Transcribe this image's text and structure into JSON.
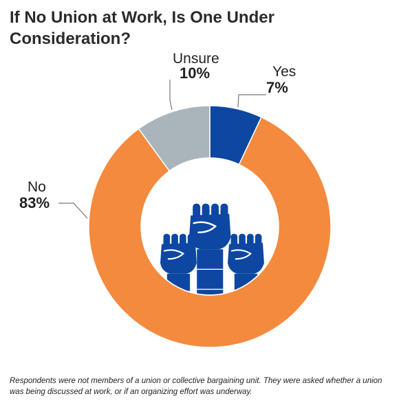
{
  "chart_data": {
    "type": "pie",
    "donut": true,
    "title": "If No Union at Work, Is One Under Consideration?",
    "categories": [
      "Yes",
      "No",
      "Unsure"
    ],
    "values": [
      7,
      83,
      10
    ],
    "value_labels": [
      "7%",
      "83%",
      "10%"
    ],
    "colors": [
      "#0d47a1",
      "#f48a3e",
      "#a9b5bb"
    ],
    "center_icon": "raised-fists-icon",
    "footnote": "Respondents were not members of a union or collective bargaining unit. They were asked whether a union was being discussed at work, or if an organizing effort was underway."
  }
}
